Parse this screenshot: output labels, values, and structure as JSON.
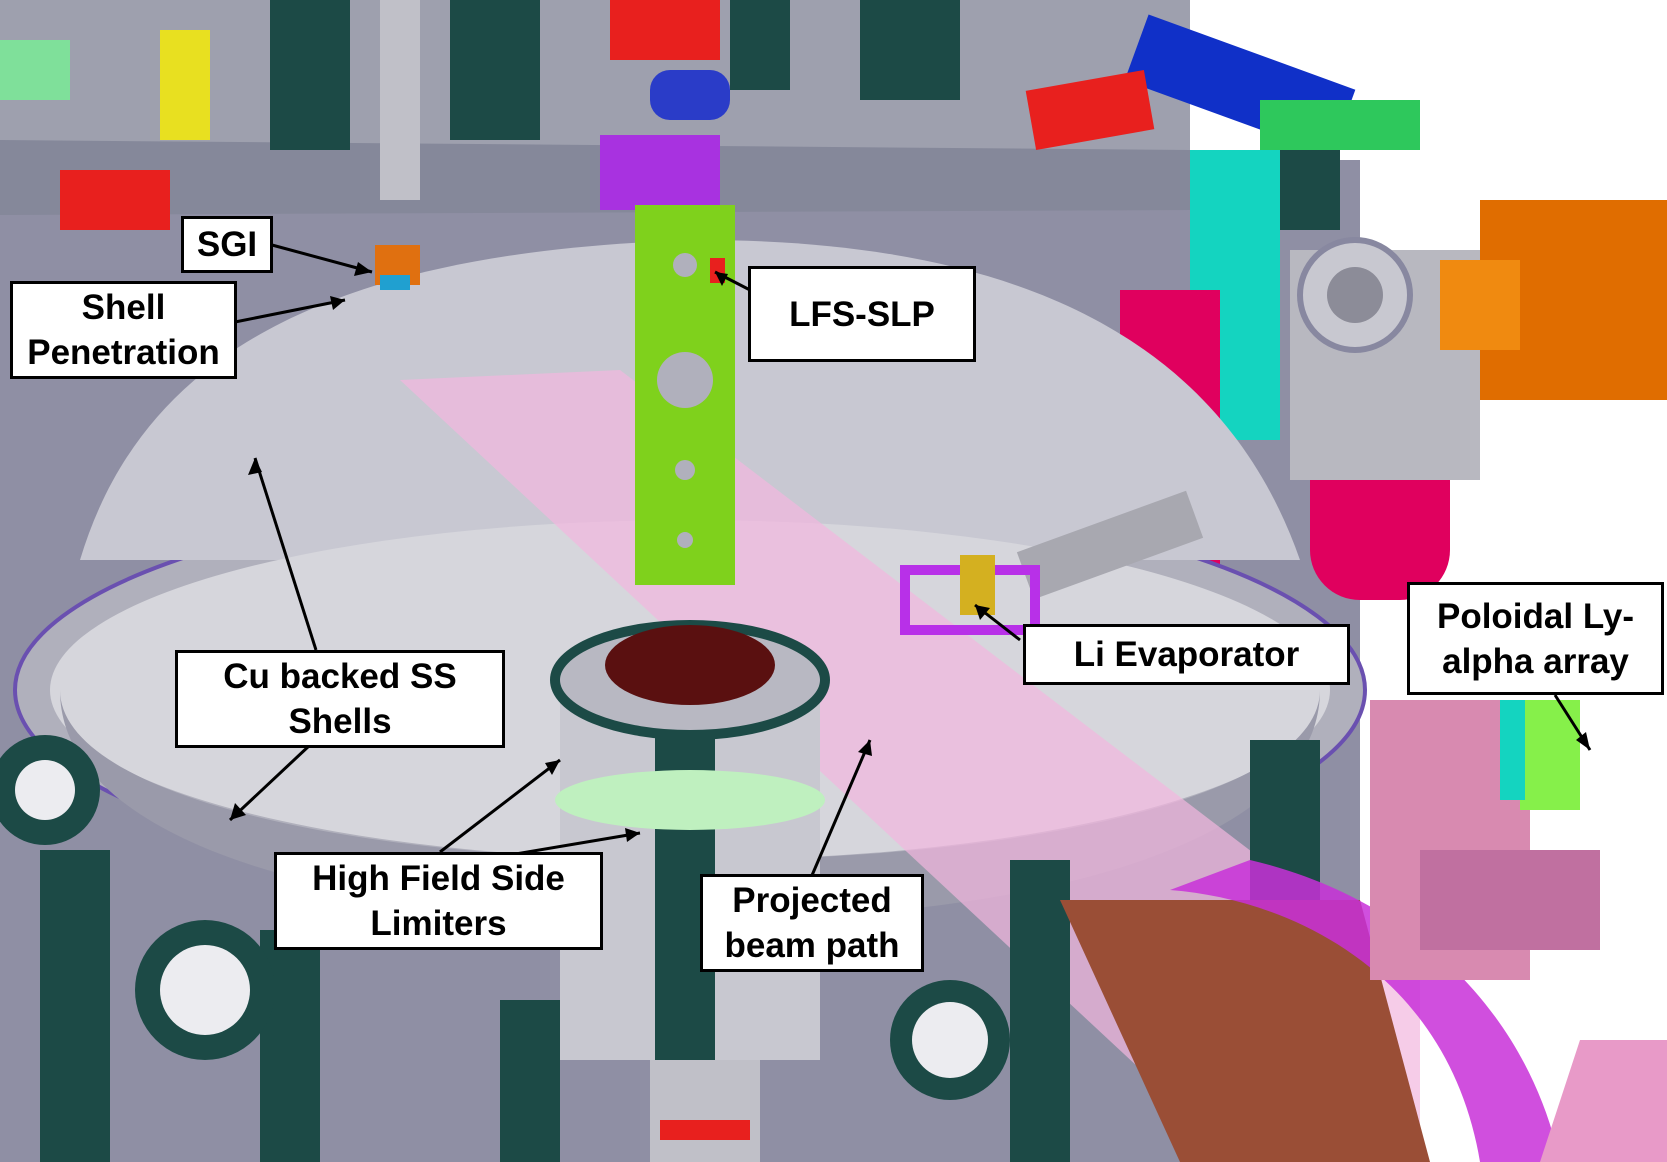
{
  "labels": {
    "sgi": "SGI",
    "shell_penetration": [
      "Shell",
      "Penetration"
    ],
    "lfs_slp": "LFS-SLP",
    "cu_backed": [
      "Cu backed SS",
      "Shells"
    ],
    "li_evaporator": "Li Evaporator",
    "poloidal": [
      "Poloidal Ly-",
      "alpha array"
    ],
    "hfs_limiters": [
      "High Field Side",
      "Limiters"
    ],
    "beam_path": [
      "Projected",
      "beam path"
    ]
  },
  "colors": {
    "vessel_gray": "#8f8fa4",
    "shell_gray": "#bdbdc6",
    "dark_teal": "#1c4a46",
    "green_strip": "#7fd11c",
    "beam_pink": "#f2b6de",
    "orange_flange": "#e06d00",
    "magenta": "#e0005e",
    "cyan": "#14d4c0",
    "purple": "#a832e0",
    "red": "#e8201e",
    "blue": "#1030c8",
    "pink_ports": "#d88ab0",
    "brown": "#9a4e36"
  }
}
